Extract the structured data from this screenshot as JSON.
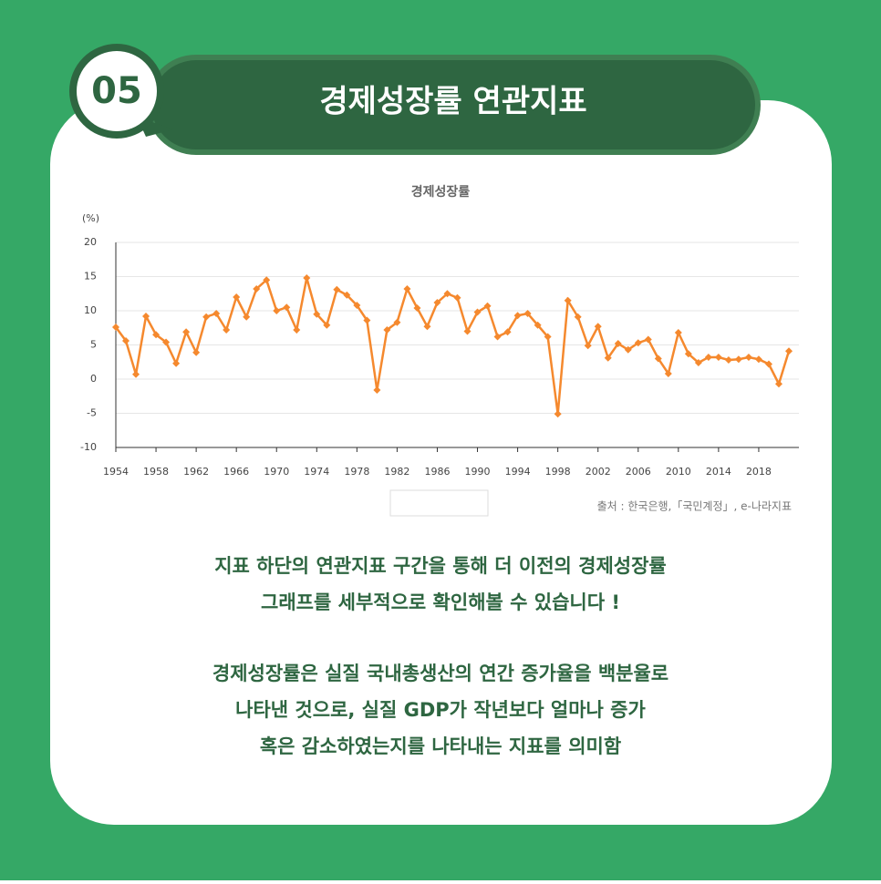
{
  "badge": "05",
  "header": {
    "title": "경제성장률 연관지표"
  },
  "chart_data": {
    "type": "line",
    "title": "경제성장률",
    "y_label": "(%)",
    "x": [
      1954,
      1955,
      1956,
      1957,
      1958,
      1959,
      1960,
      1961,
      1962,
      1963,
      1964,
      1965,
      1966,
      1967,
      1968,
      1969,
      1970,
      1971,
      1972,
      1973,
      1974,
      1975,
      1976,
      1977,
      1978,
      1979,
      1980,
      1981,
      1982,
      1983,
      1984,
      1985,
      1986,
      1987,
      1988,
      1989,
      1990,
      1991,
      1992,
      1993,
      1994,
      1995,
      1996,
      1997,
      1998,
      1999,
      2000,
      2001,
      2002,
      2003,
      2004,
      2005,
      2006,
      2007,
      2008,
      2009,
      2010,
      2011,
      2012,
      2013,
      2014,
      2015,
      2016,
      2017,
      2018,
      2019,
      2020,
      2021
    ],
    "series": [
      {
        "name": "경제성장률",
        "color": "#f5892e",
        "values": [
          7.6,
          5.6,
          0.7,
          9.2,
          6.5,
          5.4,
          2.3,
          6.9,
          3.9,
          9.1,
          9.6,
          7.2,
          12.0,
          9.1,
          13.2,
          14.5,
          10.0,
          10.5,
          7.2,
          14.8,
          9.5,
          7.9,
          13.1,
          12.3,
          10.8,
          8.6,
          -1.6,
          7.2,
          8.3,
          13.2,
          10.4,
          7.7,
          11.2,
          12.5,
          11.9,
          7.0,
          9.8,
          10.7,
          6.2,
          6.9,
          9.3,
          9.6,
          7.9,
          6.2,
          -5.1,
          11.5,
          9.1,
          4.9,
          7.7,
          3.1,
          5.2,
          4.3,
          5.3,
          5.8,
          3.0,
          0.8,
          6.8,
          3.7,
          2.4,
          3.2,
          3.2,
          2.8,
          2.9,
          3.2,
          2.9,
          2.2,
          -0.7,
          4.1
        ]
      }
    ],
    "xlim": [
      1954,
      2022
    ],
    "xticks": [
      1954,
      1958,
      1962,
      1966,
      1970,
      1974,
      1978,
      1982,
      1986,
      1990,
      1994,
      1998,
      2002,
      2006,
      2010,
      2014,
      2018
    ],
    "ylim": [
      -10,
      20
    ],
    "yticks": [
      -10,
      -5,
      0,
      5,
      10,
      15,
      20
    ],
    "grid": true,
    "legend": "bottom",
    "source": "출처 : 한국은행,「국민계정」, e-나라지표"
  },
  "body": {
    "paragraphs": [
      [
        "지표 하단의 연관지표 구간을 통해 더 이전의 경제성장률",
        "그래프를 세부적으로 확인해볼 수 있습니다 !"
      ],
      [
        "경제성장률은 실질 국내총생산의 연간 증가율을 백분율로",
        "나타낸 것으로, 실질 GDP가 작년보다 얼마나 증가",
        "혹은 감소하였는지를 나타내는 지표를 의미함"
      ]
    ]
  }
}
